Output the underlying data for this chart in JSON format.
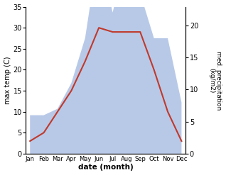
{
  "months": [
    "Jan",
    "Feb",
    "Mar",
    "Apr",
    "May",
    "Jun",
    "Jul",
    "Aug",
    "Sep",
    "Oct",
    "Nov",
    "Dec"
  ],
  "temperature": [
    3,
    5,
    10,
    15,
    22,
    30,
    29,
    29,
    29,
    20,
    10,
    3
  ],
  "precipitation": [
    6,
    6,
    7,
    11,
    18,
    32,
    22,
    31,
    25,
    18,
    18,
    8
  ],
  "temp_color": "#c0392b",
  "precip_color_fill": "#b8c9e8",
  "temp_ylim": [
    0,
    35
  ],
  "precip_ylim": [
    0,
    22.9
  ],
  "ylabel_left": "max temp (C)",
  "ylabel_right": "med. precipitation\n(kg/m2)",
  "xlabel": "date (month)",
  "left_yticks": [
    0,
    5,
    10,
    15,
    20,
    25,
    30,
    35
  ],
  "right_yticks": [
    0,
    5,
    10,
    15,
    20
  ],
  "background_color": "#ffffff"
}
